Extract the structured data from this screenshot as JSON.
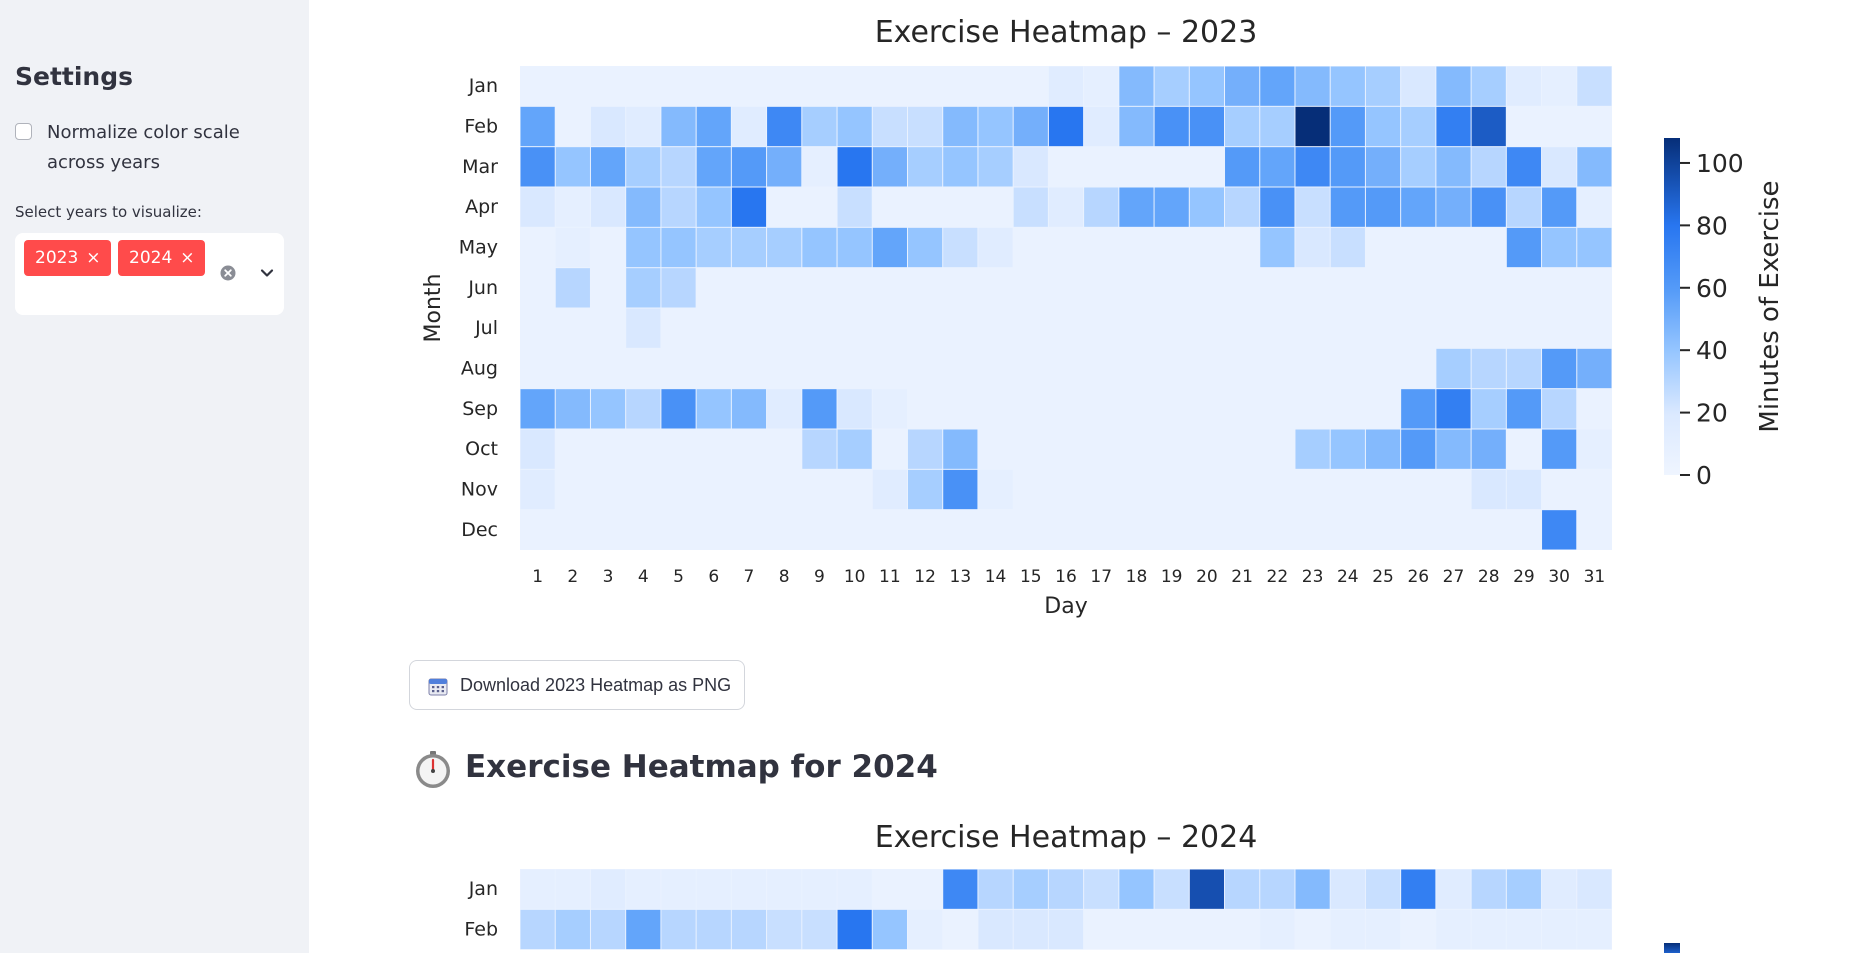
{
  "sidebar": {
    "title": "Settings",
    "normalize_label": "Normalize color scale across years",
    "normalize_checked": false,
    "years_label": "Select years to visualize:",
    "selected_years": [
      "2023",
      "2024"
    ],
    "tag_remove_glyph": "×",
    "clear_icon": "clear-icon",
    "dropdown_icon": "chevron-down-icon",
    "accent_color": "#ff4b4b"
  },
  "main": {
    "download_button_label": "Download 2023 Heatmap as PNG",
    "download_icon": "calendar-icon",
    "section_title": "Exercise Heatmap for 2024",
    "section_icon": "timer-clock-icon"
  },
  "chart_data": [
    {
      "type": "heatmap",
      "title": "Exercise Heatmap – 2023",
      "xlabel": "Day",
      "ylabel": "Month",
      "x": [
        1,
        2,
        3,
        4,
        5,
        6,
        7,
        8,
        9,
        10,
        11,
        12,
        13,
        14,
        15,
        16,
        17,
        18,
        19,
        20,
        21,
        22,
        23,
        24,
        25,
        26,
        27,
        28,
        29,
        30,
        31
      ],
      "y": [
        "Jan",
        "Feb",
        "Mar",
        "Apr",
        "May",
        "Jun",
        "Jul",
        "Aug",
        "Sep",
        "Oct",
        "Nov",
        "Dec"
      ],
      "colorbar": {
        "label": "Minutes of Exercise",
        "ticks": [
          0,
          20,
          40,
          60,
          80,
          100
        ],
        "range": [
          0,
          108
        ],
        "colormap": "Blues"
      },
      "values": [
        [
          5,
          5,
          5,
          5,
          5,
          5,
          5,
          5,
          5,
          5,
          5,
          5,
          5,
          5,
          5,
          15,
          10,
          45,
          35,
          40,
          50,
          55,
          45,
          40,
          35,
          20,
          45,
          35,
          15,
          10,
          25
        ],
        [
          55,
          5,
          20,
          15,
          45,
          55,
          15,
          70,
          35,
          40,
          25,
          25,
          45,
          40,
          50,
          80,
          15,
          45,
          65,
          65,
          35,
          35,
          108,
          60,
          40,
          35,
          75,
          90,
          5,
          5,
          5
        ],
        [
          65,
          40,
          55,
          35,
          30,
          55,
          60,
          50,
          10,
          80,
          50,
          35,
          40,
          35,
          20,
          5,
          5,
          5,
          5,
          5,
          60,
          55,
          70,
          60,
          50,
          35,
          45,
          30,
          70,
          20,
          45
        ],
        [
          20,
          10,
          20,
          45,
          30,
          40,
          80,
          5,
          5,
          25,
          5,
          5,
          5,
          5,
          25,
          15,
          30,
          55,
          55,
          40,
          30,
          65,
          25,
          60,
          60,
          55,
          50,
          65,
          30,
          60,
          10
        ],
        [
          5,
          10,
          5,
          40,
          40,
          35,
          35,
          35,
          40,
          40,
          55,
          40,
          25,
          15,
          5,
          5,
          5,
          5,
          5,
          5,
          5,
          40,
          20,
          25,
          5,
          5,
          5,
          5,
          60,
          40,
          40
        ],
        [
          5,
          30,
          5,
          35,
          30,
          5,
          5,
          5,
          5,
          5,
          5,
          5,
          5,
          5,
          5,
          5,
          5,
          5,
          5,
          5,
          5,
          5,
          5,
          5,
          5,
          5,
          5,
          5,
          5,
          5,
          5
        ],
        [
          5,
          5,
          5,
          20,
          5,
          5,
          5,
          5,
          5,
          5,
          5,
          5,
          5,
          5,
          5,
          5,
          5,
          5,
          5,
          5,
          5,
          5,
          5,
          5,
          5,
          5,
          5,
          5,
          5,
          5,
          5
        ],
        [
          5,
          5,
          5,
          5,
          5,
          5,
          5,
          5,
          5,
          5,
          5,
          5,
          5,
          5,
          5,
          5,
          5,
          5,
          5,
          5,
          5,
          5,
          5,
          5,
          5,
          5,
          35,
          30,
          30,
          60,
          50
        ],
        [
          55,
          45,
          40,
          30,
          65,
          40,
          45,
          15,
          60,
          20,
          10,
          5,
          5,
          5,
          5,
          5,
          5,
          5,
          5,
          5,
          5,
          5,
          5,
          5,
          5,
          60,
          75,
          35,
          60,
          30,
          5
        ],
        [
          20,
          5,
          5,
          5,
          5,
          5,
          5,
          5,
          30,
          35,
          5,
          30,
          45,
          5,
          5,
          5,
          5,
          5,
          5,
          5,
          5,
          5,
          35,
          40,
          45,
          60,
          45,
          50,
          5,
          60,
          10
        ],
        [
          15,
          5,
          5,
          5,
          5,
          5,
          5,
          5,
          5,
          5,
          15,
          35,
          65,
          10,
          5,
          5,
          5,
          5,
          5,
          5,
          5,
          5,
          5,
          5,
          5,
          5,
          5,
          20,
          20,
          5,
          5
        ],
        [
          5,
          5,
          5,
          5,
          5,
          5,
          5,
          5,
          5,
          5,
          5,
          5,
          5,
          5,
          5,
          5,
          5,
          5,
          5,
          5,
          5,
          5,
          5,
          5,
          5,
          5,
          5,
          5,
          5,
          70,
          5
        ]
      ]
    },
    {
      "type": "heatmap",
      "title": "Exercise Heatmap – 2024",
      "xlabel": "Day",
      "ylabel": "Month",
      "x": [
        1,
        2,
        3,
        4,
        5,
        6,
        7,
        8,
        9,
        10,
        11,
        12,
        13,
        14,
        15,
        16,
        17,
        18,
        19,
        20,
        21,
        22,
        23,
        24,
        25,
        26,
        27,
        28,
        29,
        30,
        31
      ],
      "y_visible": [
        "Jan",
        "Feb"
      ],
      "colormap": "Blues",
      "values": [
        [
          10,
          10,
          15,
          10,
          10,
          10,
          10,
          10,
          10,
          10,
          5,
          5,
          70,
          30,
          35,
          30,
          25,
          40,
          25,
          95,
          30,
          30,
          45,
          20,
          25,
          75,
          15,
          30,
          35,
          15,
          20
        ],
        [
          30,
          35,
          30,
          55,
          30,
          30,
          30,
          25,
          25,
          80,
          40,
          10,
          5,
          20,
          20,
          20,
          5,
          5,
          5,
          5,
          5,
          10,
          5,
          10,
          10,
          5,
          10,
          10,
          10,
          10,
          10
        ]
      ]
    }
  ]
}
